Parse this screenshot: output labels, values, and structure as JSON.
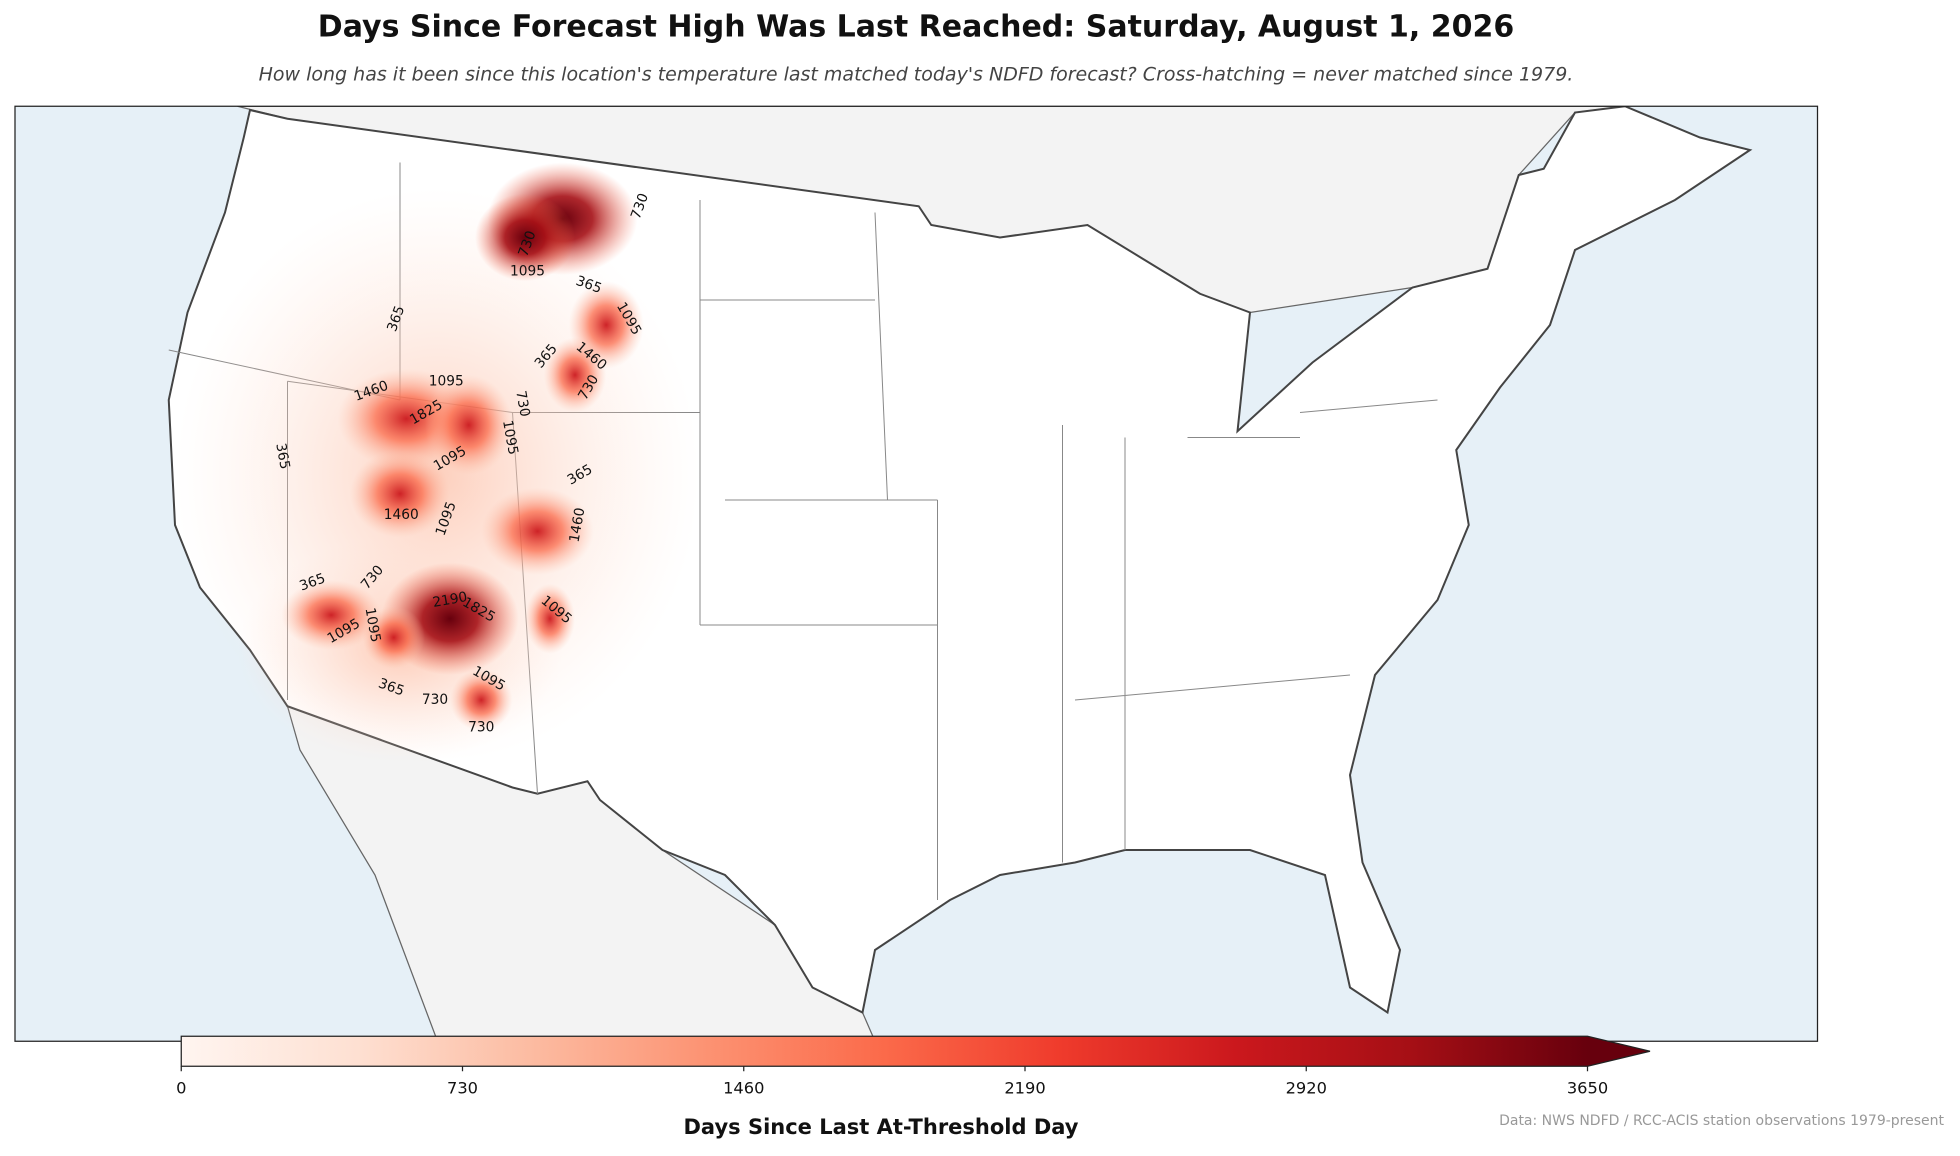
{
  "title": "Days Since Forecast High Was Last Reached: Saturday, August 1, 2026",
  "subtitle": "How long has it been since this location's temperature last matched today's NDFD forecast? Cross-hatching = never matched since 1979.",
  "colorbar": {
    "label": "Days Since Last At-Threshold Day",
    "lim": [
      0,
      3650
    ],
    "ticks": [
      0,
      730,
      1460,
      2190,
      2920,
      3650
    ],
    "colors": [
      "#fff5f0",
      "#fee0d2",
      "#fcbba1",
      "#fc9272",
      "#fb6a4a",
      "#ef3b2c",
      "#cb181d",
      "#a50f15",
      "#67000d"
    ]
  },
  "contour_labels": [
    730,
    1095,
    365,
    1095,
    1460,
    730,
    365,
    365,
    1460,
    1095,
    1825,
    730,
    1095,
    365,
    1095,
    1460,
    1095,
    365,
    1460,
    365,
    730,
    1095,
    2190,
    1825,
    1095,
    365,
    730,
    730,
    1095,
    730,
    1095
  ],
  "source": "Data: NWS NDFD / RCC-ACIS station observations 1979-present"
}
